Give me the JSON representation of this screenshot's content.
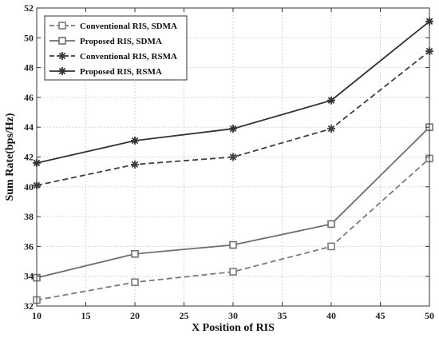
{
  "chart_data": {
    "type": "line",
    "xlabel": "X Position of RIS",
    "ylabel": "Sum Rate(bps/Hz)",
    "xlim": [
      10,
      50
    ],
    "ylim": [
      32,
      52
    ],
    "xticks": [
      10,
      15,
      20,
      25,
      30,
      35,
      40,
      45,
      50
    ],
    "yticks": [
      32,
      34,
      36,
      38,
      40,
      42,
      44,
      46,
      48,
      50,
      52
    ],
    "grid": true,
    "legend_position": "top-left",
    "x": [
      10,
      20,
      30,
      40,
      50
    ],
    "series": [
      {
        "name": "Conventional RIS, SDMA",
        "values": [
          32.4,
          33.6,
          34.3,
          36.0,
          41.9
        ],
        "marker": "square",
        "line": "dashed",
        "color": "#7a7a7a"
      },
      {
        "name": "Proposed RIS, SDMA",
        "values": [
          33.9,
          35.5,
          36.1,
          37.5,
          44.0
        ],
        "marker": "square",
        "line": "solid",
        "color": "#6e6e6e"
      },
      {
        "name": "Conventional RIS, RSMA",
        "values": [
          40.1,
          41.5,
          42.0,
          43.9,
          49.1
        ],
        "marker": "asterisk",
        "line": "dashed",
        "color": "#3f3f3f"
      },
      {
        "name": "Proposed RIS, RSMA",
        "values": [
          41.6,
          43.1,
          43.9,
          45.8,
          51.1
        ],
        "marker": "asterisk",
        "line": "solid",
        "color": "#333333"
      }
    ]
  }
}
